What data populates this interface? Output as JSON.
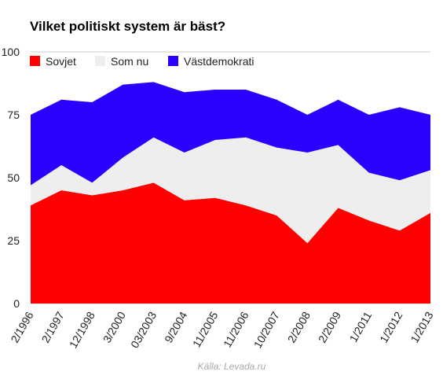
{
  "chart_data": {
    "type": "area",
    "stacked": true,
    "title": "Vilket politiskt system är bäst?",
    "source": "Källa: Levada.ru",
    "categories": [
      "2/1996",
      "2/1997",
      "12/1998",
      "3/2000",
      "03/2003",
      "9/2004",
      "11/2005",
      "11/2006",
      "10/2007",
      "2/2008",
      "2/2009",
      "1/2011",
      "1/2012",
      "1/2013"
    ],
    "series": [
      {
        "name": "Sovjet",
        "color": "#ff0000",
        "values": [
          39,
          45,
          43,
          45,
          48,
          41,
          42,
          39,
          35,
          24,
          38,
          33,
          29,
          36
        ]
      },
      {
        "name": "Som nu",
        "color": "#eeeeee",
        "values": [
          8,
          10,
          5,
          13,
          18,
          19,
          23,
          27,
          27,
          36,
          25,
          19,
          20,
          17
        ]
      },
      {
        "name": "Västdemokrati",
        "color": "#2b00ff",
        "values": [
          28,
          26,
          32,
          29,
          22,
          24,
          20,
          19,
          19,
          15,
          18,
          23,
          29,
          22
        ]
      }
    ],
    "ylim": [
      0,
      100
    ],
    "yticks": [
      0,
      25,
      50,
      75,
      100
    ],
    "legend_position": "top-left",
    "grid": true
  }
}
